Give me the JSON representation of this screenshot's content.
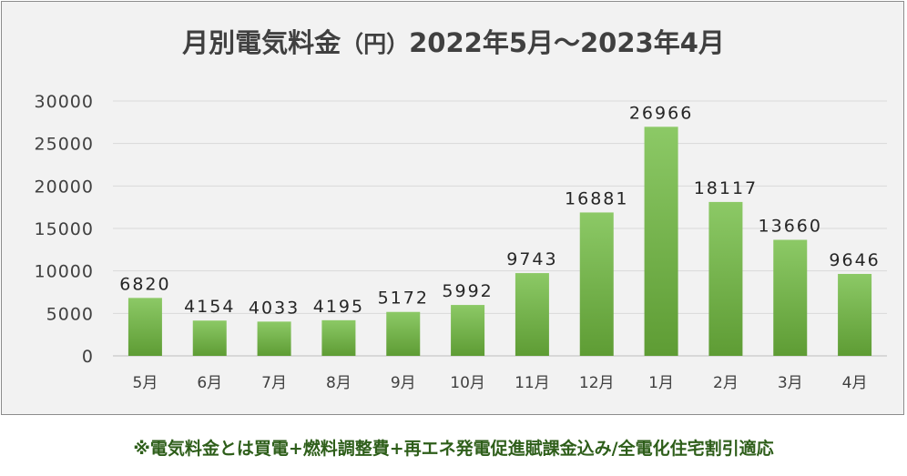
{
  "chart_data": {
    "type": "bar",
    "title": "月別電気料金",
    "title_unit": "（円）",
    "title_period": "2022年5月～2023年4月",
    "categories": [
      "5月",
      "6月",
      "7月",
      "8月",
      "9月",
      "10月",
      "11月",
      "12月",
      "1月",
      "2月",
      "3月",
      "4月"
    ],
    "values": [
      6820,
      4154,
      4033,
      4195,
      5172,
      5992,
      9743,
      16881,
      26966,
      18117,
      13660,
      9646
    ],
    "ylim": [
      0,
      30000
    ],
    "yticks": [
      0,
      5000,
      10000,
      15000,
      20000,
      25000,
      30000
    ],
    "grid": true,
    "data_labels": true,
    "bar_color": "#70ad47"
  },
  "footnote": "※電気料金とは買電+燃料調整費+再エネ発電促進賦課金込み/全電化住宅割引適応"
}
